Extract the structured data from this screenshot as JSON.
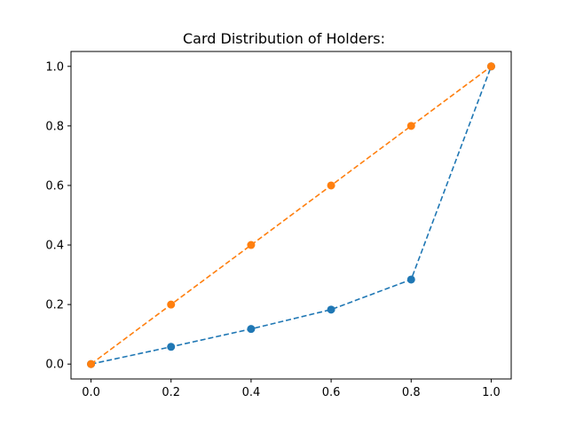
{
  "chart_data": {
    "type": "line",
    "title": "Card Distribution of Holders:",
    "xlabel": "",
    "ylabel": "",
    "xlim": [
      -0.05,
      1.05
    ],
    "ylim": [
      -0.05,
      1.05
    ],
    "x_ticks": [
      0.0,
      0.2,
      0.4,
      0.6,
      0.8,
      1.0
    ],
    "y_ticks": [
      0.0,
      0.2,
      0.4,
      0.6,
      0.8,
      1.0
    ],
    "x_tick_labels": [
      "0.0",
      "0.2",
      "0.4",
      "0.6",
      "0.8",
      "1.0"
    ],
    "y_tick_labels": [
      "0.0",
      "0.2",
      "0.4",
      "0.6",
      "0.8",
      "1.0"
    ],
    "x": [
      0.0,
      0.2,
      0.4,
      0.6,
      0.8,
      1.0
    ],
    "grid": false,
    "legend": "none",
    "series": [
      {
        "color": "#1f77b4",
        "line_style": "dashed",
        "marker": "circle",
        "values": [
          0.0,
          0.058,
          0.118,
          0.183,
          0.284,
          1.0
        ]
      },
      {
        "color": "#ff7f0e",
        "line_style": "dashed",
        "marker": "circle",
        "values": [
          0.0,
          0.2,
          0.4,
          0.6,
          0.8,
          1.0
        ]
      }
    ]
  }
}
